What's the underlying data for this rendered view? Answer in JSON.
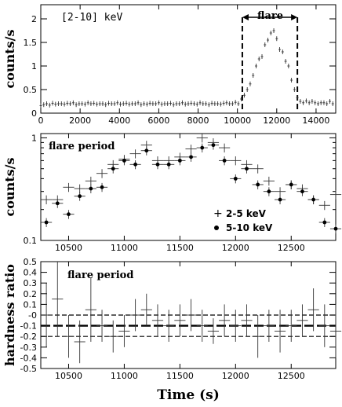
{
  "chart_data": [
    {
      "id": "p1",
      "type": "scatter",
      "title": "",
      "xlabel": "",
      "ylabel": "counts/s",
      "xlim": [
        0,
        15000
      ],
      "ylim": [
        0,
        2.3
      ],
      "xticks": [
        0,
        2000,
        4000,
        6000,
        8000,
        10000,
        12000,
        14000
      ],
      "yticks": [
        0,
        0.5,
        1,
        1.5,
        2
      ],
      "yticklabels": [
        "0",
        "0.5",
        "1",
        "1.5",
        "2"
      ],
      "annotation_label": "[2-10]  keV",
      "flare_label": "flare",
      "flare_interval": [
        10250,
        13050
      ],
      "series": [
        {
          "name": "",
          "x": [
            0,
            150,
            300,
            450,
            600,
            750,
            900,
            1050,
            1200,
            1350,
            1500,
            1650,
            1800,
            1950,
            2100,
            2250,
            2400,
            2550,
            2700,
            2850,
            3000,
            3150,
            3300,
            3450,
            3600,
            3750,
            3900,
            4050,
            4200,
            4350,
            4500,
            4650,
            4800,
            4950,
            5100,
            5250,
            5400,
            5550,
            5700,
            5850,
            6000,
            6150,
            6300,
            6450,
            6600,
            6750,
            6900,
            7050,
            7200,
            7350,
            7500,
            7650,
            7800,
            7950,
            8100,
            8250,
            8400,
            8550,
            8700,
            8850,
            9000,
            9150,
            9300,
            9450,
            9600,
            9750,
            9900,
            10050,
            10200,
            10350,
            10500,
            10650,
            10800,
            10950,
            11100,
            11250,
            11400,
            11550,
            11700,
            11850,
            12000,
            12150,
            12300,
            12450,
            12600,
            12750,
            12900,
            13050,
            13200,
            13350,
            13500,
            13650,
            13800,
            13950,
            14100,
            14250,
            14400,
            14550,
            14700,
            14850
          ],
          "y": [
            0.16,
            0.18,
            0.2,
            0.17,
            0.21,
            0.19,
            0.2,
            0.2,
            0.19,
            0.21,
            0.2,
            0.22,
            0.18,
            0.2,
            0.2,
            0.19,
            0.22,
            0.2,
            0.21,
            0.19,
            0.2,
            0.2,
            0.18,
            0.21,
            0.2,
            0.2,
            0.22,
            0.19,
            0.2,
            0.21,
            0.19,
            0.2,
            0.2,
            0.22,
            0.18,
            0.2,
            0.19,
            0.21,
            0.2,
            0.2,
            0.22,
            0.19,
            0.2,
            0.2,
            0.21,
            0.18,
            0.2,
            0.2,
            0.22,
            0.19,
            0.2,
            0.21,
            0.2,
            0.19,
            0.22,
            0.2,
            0.2,
            0.18,
            0.21,
            0.2,
            0.2,
            0.19,
            0.21,
            0.22,
            0.2,
            0.2,
            0.23,
            0.2,
            0.3,
            0.38,
            0.5,
            0.62,
            0.8,
            1.0,
            1.15,
            1.2,
            1.45,
            1.55,
            1.7,
            1.75,
            1.58,
            1.35,
            1.3,
            1.1,
            1.0,
            0.7,
            0.5,
            0.33,
            0.25,
            0.22,
            0.26,
            0.22,
            0.25,
            0.22,
            0.2,
            0.22,
            0.22,
            0.2,
            0.25,
            0.2
          ],
          "yerr": 0.05
        }
      ]
    },
    {
      "id": "p2",
      "type": "scatter",
      "title": "",
      "xlabel": "",
      "ylabel": "counts/s",
      "yscale": "log",
      "xlim": [
        10250,
        12900
      ],
      "ylim": [
        0.1,
        1.1
      ],
      "xticks": [
        10500,
        11000,
        11500,
        12000,
        12500
      ],
      "yticks": [
        0.1,
        1
      ],
      "yticklabels": [
        "0.1",
        "1"
      ],
      "annotation_label": "flare period",
      "legend": "lower-right",
      "series": [
        {
          "name": "2-5 keV",
          "marker": "+",
          "x": [
            10300,
            10400,
            10500,
            10600,
            10700,
            10800,
            10900,
            11000,
            11100,
            11200,
            11300,
            11400,
            11500,
            11600,
            11700,
            11800,
            11900,
            12000,
            12100,
            12200,
            12300,
            12400,
            12500,
            12600,
            12700,
            12800,
            12900
          ],
          "y": [
            0.25,
            0.25,
            0.33,
            0.32,
            0.38,
            0.45,
            0.55,
            0.62,
            0.7,
            0.85,
            0.6,
            0.6,
            0.65,
            0.78,
            1.0,
            0.9,
            0.8,
            0.6,
            0.55,
            0.5,
            0.38,
            0.3,
            0.35,
            0.32,
            0.25,
            0.22,
            0.28
          ],
          "xerr": 50,
          "yerr_frac": 0.1
        },
        {
          "name": "5-10 keV",
          "marker": "dot",
          "x": [
            10300,
            10400,
            10500,
            10600,
            10700,
            10800,
            10900,
            11000,
            11100,
            11200,
            11300,
            11400,
            11500,
            11600,
            11700,
            11800,
            11900,
            12000,
            12100,
            12200,
            12300,
            12400,
            12500,
            12600,
            12700,
            12800,
            12900
          ],
          "y": [
            0.15,
            0.23,
            0.18,
            0.27,
            0.32,
            0.33,
            0.5,
            0.6,
            0.55,
            0.75,
            0.55,
            0.55,
            0.6,
            0.65,
            0.8,
            0.85,
            0.6,
            0.4,
            0.5,
            0.35,
            0.3,
            0.25,
            0.35,
            0.3,
            0.25,
            0.15,
            0.13
          ],
          "xerr": 50,
          "yerr_frac": 0.1
        }
      ]
    },
    {
      "id": "p3",
      "type": "scatter",
      "title": "",
      "xlabel": "Time (s)",
      "ylabel": "hardness ratio",
      "xlim": [
        10250,
        12900
      ],
      "ylim": [
        -0.5,
        0.5
      ],
      "xticks": [
        10500,
        11000,
        11500,
        12000,
        12500
      ],
      "yticks": [
        -0.5,
        -0.4,
        -0.3,
        -0.2,
        -0.1,
        0,
        0.1,
        0.2,
        0.3,
        0.4,
        0.5
      ],
      "yticklabels": [
        "-0.5",
        "-0.4",
        "-0.3",
        "-0.2",
        "-0.1",
        "-0",
        "0.1",
        "0.2",
        "0.3",
        "0.4",
        "0.5"
      ],
      "annotation_label": "flare period",
      "mean_line": -0.1,
      "band_lines": [
        0,
        -0.2
      ],
      "series": [
        {
          "name": "",
          "x": [
            10300,
            10400,
            10500,
            10600,
            10700,
            10800,
            10900,
            11000,
            11100,
            11200,
            11300,
            11400,
            11500,
            11600,
            11700,
            11800,
            11900,
            12000,
            12100,
            12200,
            12300,
            12400,
            12500,
            12600,
            12700,
            12800,
            12900
          ],
          "y": [
            0.0,
            0.15,
            -0.2,
            -0.25,
            0.05,
            -0.1,
            -0.2,
            -0.15,
            0.0,
            0.05,
            -0.05,
            -0.1,
            -0.05,
            0.0,
            -0.1,
            -0.15,
            -0.05,
            -0.1,
            -0.05,
            -0.2,
            -0.1,
            -0.15,
            -0.1,
            -0.05,
            0.05,
            -0.1,
            -0.15
          ],
          "xerr": 50,
          "yerr": [
            0.3,
            0.35,
            0.2,
            0.2,
            0.3,
            0.15,
            0.15,
            0.15,
            0.15,
            0.15,
            0.15,
            0.15,
            0.15,
            0.15,
            0.15,
            0.12,
            0.15,
            0.15,
            0.15,
            0.2,
            0.15,
            0.2,
            0.15,
            0.15,
            0.2,
            0.2,
            0.25
          ]
        }
      ]
    }
  ]
}
